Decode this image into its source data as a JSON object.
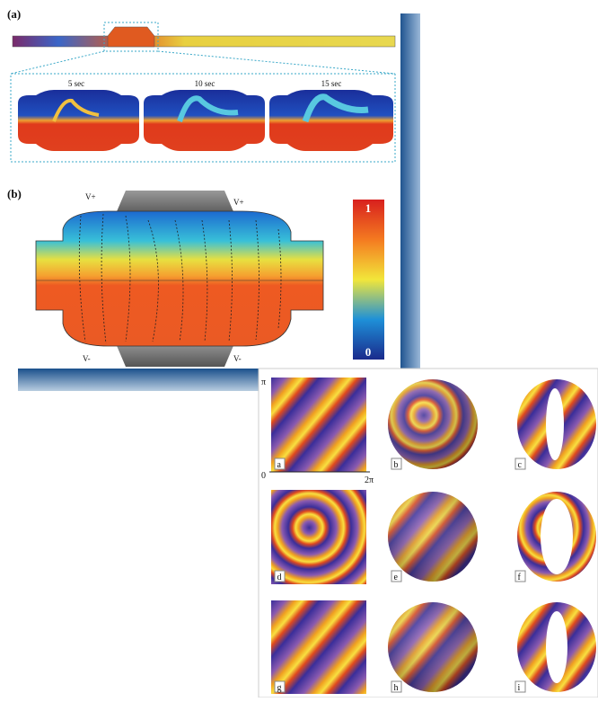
{
  "panel_a": {
    "label": "(a)",
    "snapshots": [
      "5 sec",
      "10 sec",
      "15 sec"
    ]
  },
  "panel_b": {
    "label": "(b)",
    "electrodes": [
      "V+",
      "V+",
      "V-",
      "V-"
    ],
    "colorbar": {
      "max": "1",
      "min": "0"
    }
  },
  "figure_2": {
    "axis": {
      "top": "π",
      "origin": "0",
      "right": "2π"
    },
    "panels": [
      "a",
      "b",
      "c",
      "d",
      "e",
      "f",
      "g",
      "h",
      "i"
    ]
  }
}
